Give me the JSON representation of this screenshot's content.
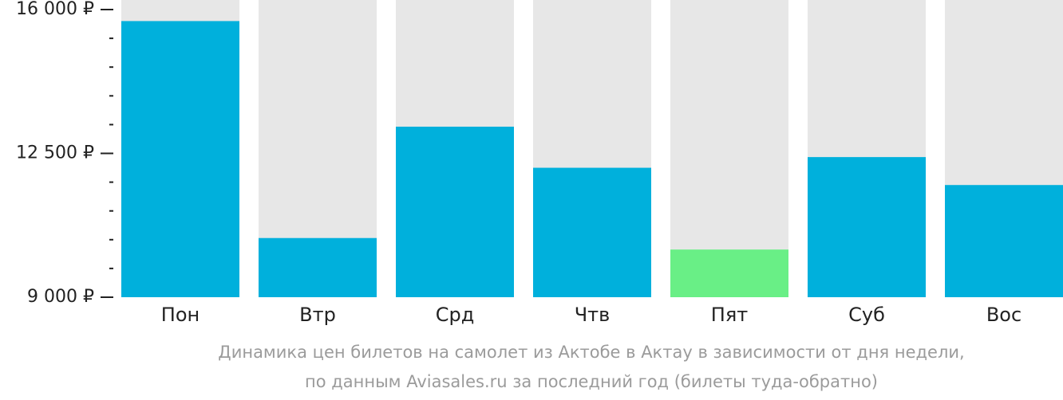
{
  "chart_data": {
    "type": "bar",
    "categories": [
      "Пон",
      "Втр",
      "Срд",
      "Чтв",
      "Пят",
      "Суб",
      "Вос"
    ],
    "values": [
      15720,
      10440,
      13150,
      12150,
      10160,
      12410,
      11730
    ],
    "ylim": [
      9000,
      16000
    ],
    "yticks": [
      {
        "value": 16000,
        "label": "16 000 ₽"
      },
      {
        "value": 12500,
        "label": "12 500 ₽"
      },
      {
        "value": 9000,
        "label": "9 000 ₽"
      }
    ],
    "minor_tick_step": 700,
    "highlight_index": 4,
    "colors": {
      "bar": "#00b0dc",
      "highlight": "#69ef86",
      "background_column": "#e7e7e7"
    },
    "caption": [
      "Динамика цен билетов на самолет из Актобе в Актау в зависимости от дня недели,",
      "по данным Aviasales.ru за последний год (билеты туда-обратно)"
    ]
  }
}
